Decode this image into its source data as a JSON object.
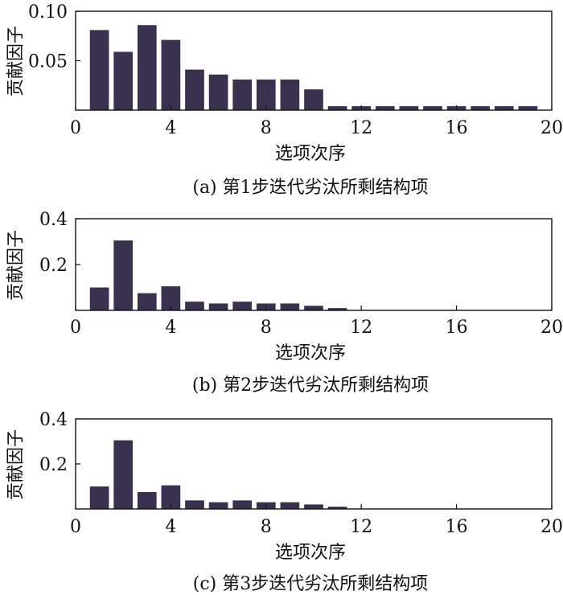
{
  "figure": {
    "bar_color": "#3a3150",
    "axis_color": "#111111"
  },
  "chart_data": [
    {
      "type": "bar",
      "caption": "(a) 第1步迭代劣汰所剩结构项",
      "xlabel": "选项次序",
      "ylabel": "贡献因子",
      "xlim": [
        0,
        20
      ],
      "ylim": [
        0,
        0.1
      ],
      "xticks": [
        "0",
        "4",
        "8",
        "12",
        "16",
        "20"
      ],
      "yticks": [
        "0.05",
        "0.10"
      ],
      "x": [
        1,
        2,
        3,
        4,
        5,
        6,
        7,
        8,
        9,
        10,
        11,
        12,
        13,
        14,
        15,
        16,
        17,
        18,
        19
      ],
      "values": [
        0.081,
        0.059,
        0.086,
        0.071,
        0.041,
        0.036,
        0.031,
        0.031,
        0.031,
        0.021,
        0.004,
        0.004,
        0.004,
        0.004,
        0.004,
        0.004,
        0.004,
        0.004,
        0.004
      ]
    },
    {
      "type": "bar",
      "caption": "(b) 第2步迭代劣汰所剩结构项",
      "xlabel": "选项次序",
      "ylabel": "贡献因子",
      "xlim": [
        0,
        20
      ],
      "ylim": [
        0,
        0.4
      ],
      "xticks": [
        "0",
        "4",
        "8",
        "12",
        "16",
        "20"
      ],
      "yticks": [
        "0.2",
        "0.4"
      ],
      "x": [
        1,
        2,
        3,
        4,
        5,
        6,
        7,
        8,
        9,
        10,
        11
      ],
      "values": [
        0.1,
        0.305,
        0.075,
        0.105,
        0.038,
        0.03,
        0.038,
        0.03,
        0.03,
        0.02,
        0.01
      ]
    },
    {
      "type": "bar",
      "caption": "(c) 第3步迭代劣汰所剩结构项",
      "xlabel": "选项次序",
      "ylabel": "贡献因子",
      "xlim": [
        0,
        20
      ],
      "ylim": [
        0,
        0.4
      ],
      "xticks": [
        "0",
        "4",
        "8",
        "12",
        "16",
        "20"
      ],
      "yticks": [
        "0.2",
        "0.4"
      ],
      "x": [
        1,
        2,
        3,
        4,
        5,
        6,
        7,
        8,
        9,
        10,
        11
      ],
      "values": [
        0.1,
        0.305,
        0.075,
        0.105,
        0.038,
        0.03,
        0.038,
        0.03,
        0.03,
        0.02,
        0.01
      ]
    }
  ]
}
